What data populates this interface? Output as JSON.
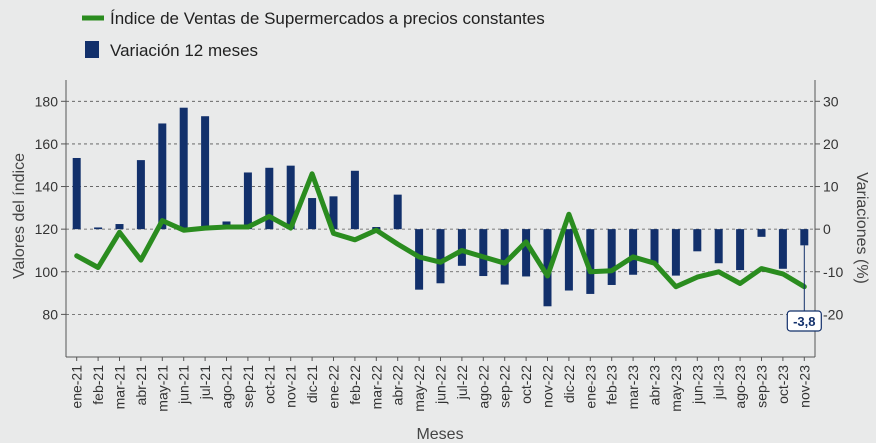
{
  "chart_data": {
    "type": "bar+line",
    "legend": [
      {
        "label": "Índice de Ventas de Supermercados a precios constantes",
        "color": "#2a8c1f",
        "kind": "line"
      },
      {
        "label": "Variación 12 meses",
        "color": "#12306b",
        "kind": "bar"
      }
    ],
    "categories": [
      "ene-21",
      "feb-21",
      "mar-21",
      "abr-21",
      "may-21",
      "jun-21",
      "jul-21",
      "ago-21",
      "sep-21",
      "oct-21",
      "nov-21",
      "dic-21",
      "ene-22",
      "feb-22",
      "mar-22",
      "abr-22",
      "may-22",
      "jun-22",
      "jul-22",
      "ago-22",
      "sep-22",
      "oct-22",
      "nov-22",
      "dic-22",
      "ene-23",
      "feb-23",
      "mar-23",
      "abr-23",
      "may-23",
      "jun-23",
      "jul-23",
      "ago-23",
      "sep-23",
      "oct-23",
      "nov-23"
    ],
    "series": [
      {
        "name": "Índice de Ventas de Supermercados a precios constantes",
        "type": "line",
        "axis": "left",
        "color": "#2a8c1f",
        "values": [
          107.5,
          102,
          118.5,
          105.5,
          124,
          119.5,
          120.5,
          121,
          121,
          126,
          120.5,
          146,
          118,
          115,
          119.5,
          113,
          107,
          104.5,
          110,
          107,
          104,
          114,
          98,
          127,
          100,
          100.5,
          107,
          104,
          93,
          97.5,
          100,
          94.5,
          101.5,
          99,
          93
        ]
      },
      {
        "name": "Variación 12 meses",
        "type": "bar",
        "axis": "right",
        "color": "#12306b",
        "values": [
          16.7,
          0.4,
          1.2,
          16.2,
          24.8,
          28.5,
          26.5,
          1.8,
          13.3,
          14.4,
          14.9,
          7.3,
          7.7,
          13.7,
          0.5,
          8.1,
          -14.2,
          -12.7,
          -8.6,
          -11,
          -13,
          -11.1,
          -18.1,
          -14.4,
          -15.2,
          -13.1,
          -10.7,
          -8.1,
          -10.9,
          -5.2,
          -8,
          -9.6,
          -1.8,
          -9.3,
          -3.8
        ]
      }
    ],
    "xlabel": "Meses",
    "ylabel_left": "Valores del índice",
    "ylabel_right": "Variaciones (%)",
    "ylim_left": [
      60,
      190
    ],
    "yticks_left": [
      80,
      100,
      120,
      140,
      160,
      180
    ],
    "ylim_right": [
      -30,
      35
    ],
    "yticks_right": [
      -20,
      -10,
      0,
      10,
      20,
      30
    ],
    "grid": true,
    "annotation": {
      "category": "nov-23",
      "text": "-3,8"
    }
  }
}
